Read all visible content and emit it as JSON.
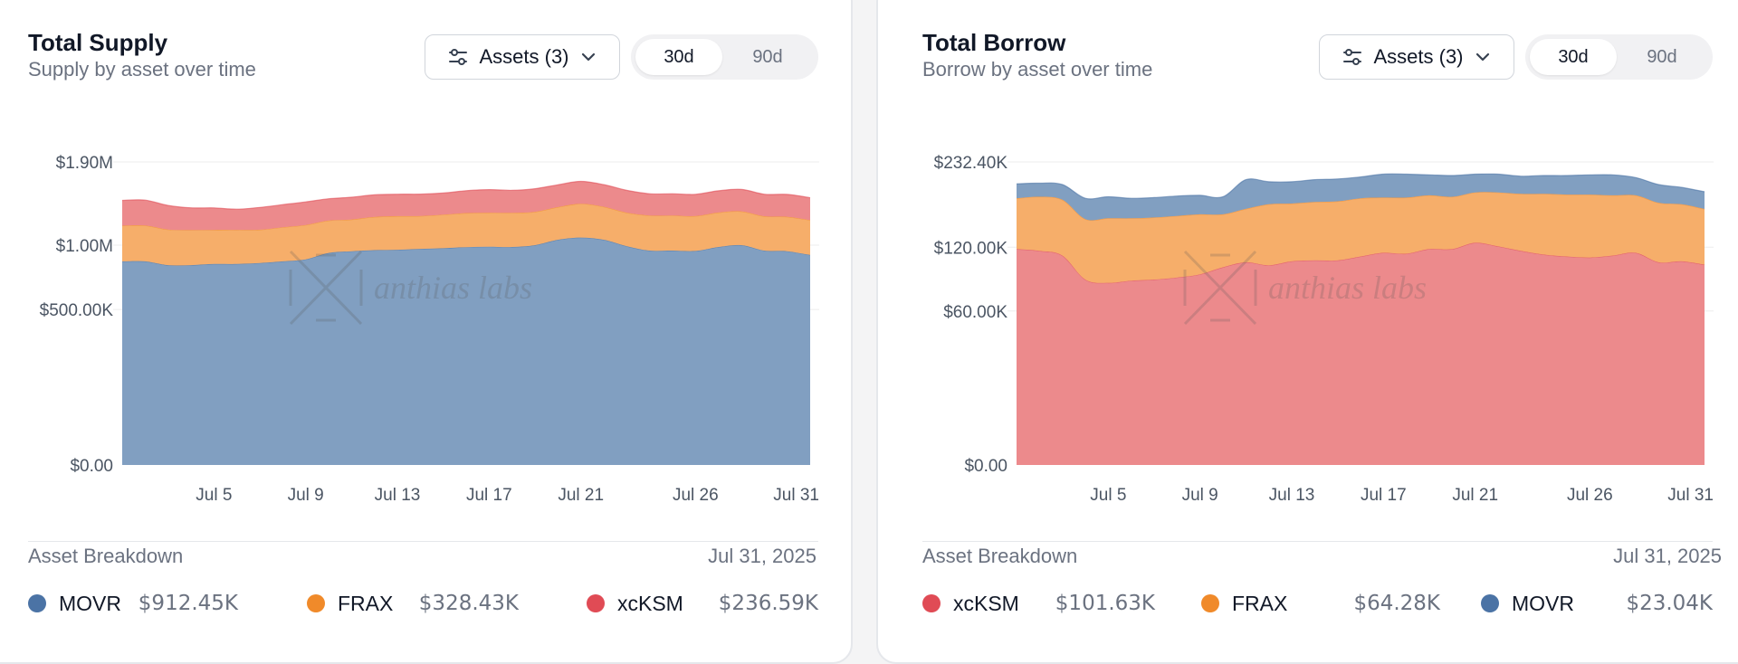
{
  "watermark": "anthias labs",
  "colors": {
    "movr": "#4b73a5",
    "frax": "#f08a2a",
    "xcksm": "#e04b55",
    "movr_fill": "#819fc1",
    "frax_fill": "#f6ae6a",
    "xcksm_fill": "#ec8a8c"
  },
  "supply_card": {
    "title": "Total Supply",
    "subtitle": "Supply by asset over time",
    "assets_button": "Assets (3)",
    "range_options": [
      "30d",
      "90d"
    ],
    "active_range": "30d",
    "breakdown_label": "Asset Breakdown",
    "breakdown_date": "Jul 31, 2025",
    "legend": [
      {
        "name": "MOVR",
        "value": "$912.45K",
        "color": "#4b73a5"
      },
      {
        "name": "FRAX",
        "value": "$328.43K",
        "color": "#f08a2a"
      },
      {
        "name": "xcKSM",
        "value": "$236.59K",
        "color": "#e04b55"
      }
    ]
  },
  "borrow_card": {
    "title": "Total Borrow",
    "subtitle": "Borrow by asset over time",
    "assets_button": "Assets (3)",
    "range_options": [
      "30d",
      "90d"
    ],
    "active_range": "30d",
    "breakdown_label": "Asset Breakdown",
    "breakdown_date": "Jul 31, 2025",
    "legend": [
      {
        "name": "xcKSM",
        "value": "$101.63K",
        "color": "#e04b55"
      },
      {
        "name": "FRAX",
        "value": "$64.28K",
        "color": "#f08a2a"
      },
      {
        "name": "MOVR",
        "value": "$23.04K",
        "color": "#4b73a5"
      }
    ]
  },
  "chart_data": [
    {
      "type": "area",
      "stacked": true,
      "title": "Total Supply",
      "subtitle": "Supply by asset over time",
      "x": [
        "Jul 1",
        "Jul 2",
        "Jul 3",
        "Jul 4",
        "Jul 5",
        "Jul 6",
        "Jul 7",
        "Jul 8",
        "Jul 9",
        "Jul 10",
        "Jul 11",
        "Jul 12",
        "Jul 13",
        "Jul 14",
        "Jul 15",
        "Jul 16",
        "Jul 17",
        "Jul 18",
        "Jul 19",
        "Jul 20",
        "Jul 21",
        "Jul 22",
        "Jul 23",
        "Jul 24",
        "Jul 25",
        "Jul 26",
        "Jul 27",
        "Jul 28",
        "Jul 29",
        "Jul 30",
        "Jul 31"
      ],
      "x_ticks": [
        "Jul 5",
        "Jul 9",
        "Jul 13",
        "Jul 17",
        "Jul 21",
        "Jul 26",
        "Jul 31"
      ],
      "y_ticks": [
        {
          "value": 0,
          "label": "$0.00"
        },
        {
          "value": 500000,
          "label": "$500.00K"
        },
        {
          "value": 1000000,
          "label": "$1.00M"
        },
        {
          "value": 1900000,
          "label": "$1.90M"
        }
      ],
      "y_scale": "sqrt",
      "ylim": [
        0,
        1900000
      ],
      "grid": "horizontal",
      "series": [
        {
          "name": "MOVR",
          "color": "#4b73a5",
          "values": [
            858000,
            858000,
            826000,
            826000,
            836000,
            836000,
            844000,
            858000,
            875000,
            930000,
            945000,
            955000,
            958000,
            966000,
            972000,
            982000,
            986000,
            983000,
            1000000,
            1050000,
            1070000,
            1050000,
            991000,
            951000,
            951000,
            948000,
            983000,
            1000000,
            951000,
            945000,
            912450
          ]
        },
        {
          "name": "FRAX",
          "color": "#f08a2a",
          "values": [
            327000,
            328000,
            321000,
            316000,
            308000,
            308000,
            301000,
            311000,
            317000,
            306000,
            302000,
            318000,
            323000,
            316000,
            325000,
            331000,
            331000,
            333000,
            326000,
            326000,
            342000,
            330000,
            327000,
            337000,
            337000,
            334000,
            336000,
            331000,
            329000,
            330000,
            328430
          ]
        },
        {
          "name": "xcKSM",
          "color": "#e04b55",
          "values": [
            263000,
            265000,
            247000,
            226000,
            223000,
            210000,
            227000,
            233000,
            240000,
            230000,
            236000,
            237000,
            236000,
            236000,
            233000,
            243000,
            252000,
            244000,
            253000,
            248000,
            252000,
            246000,
            243000,
            234000,
            234000,
            234000,
            236000,
            240000,
            237000,
            240000,
            236590
          ]
        }
      ]
    },
    {
      "type": "area",
      "stacked": true,
      "title": "Total Borrow",
      "subtitle": "Borrow by asset over time",
      "x": [
        "Jul 1",
        "Jul 2",
        "Jul 3",
        "Jul 4",
        "Jul 5",
        "Jul 6",
        "Jul 7",
        "Jul 8",
        "Jul 9",
        "Jul 10",
        "Jul 11",
        "Jul 12",
        "Jul 13",
        "Jul 14",
        "Jul 15",
        "Jul 16",
        "Jul 17",
        "Jul 18",
        "Jul 19",
        "Jul 20",
        "Jul 21",
        "Jul 22",
        "Jul 23",
        "Jul 24",
        "Jul 25",
        "Jul 26",
        "Jul 27",
        "Jul 28",
        "Jul 29",
        "Jul 30",
        "Jul 31"
      ],
      "x_ticks": [
        "Jul 5",
        "Jul 9",
        "Jul 13",
        "Jul 17",
        "Jul 21",
        "Jul 26",
        "Jul 31"
      ],
      "y_ticks": [
        {
          "value": 0,
          "label": "$0.00"
        },
        {
          "value": 60000,
          "label": "$60.00K"
        },
        {
          "value": 120000,
          "label": "$120.00K"
        },
        {
          "value": 232400,
          "label": "$232.40K"
        }
      ],
      "y_scale": "sqrt",
      "ylim": [
        0,
        232400
      ],
      "grid": "horizontal",
      "series": [
        {
          "name": "xcKSM",
          "color": "#e04b55",
          "values": [
            118000,
            116000,
            111000,
            87000,
            84000,
            86000,
            87000,
            89000,
            92000,
            99000,
            104000,
            101000,
            105000,
            106000,
            106000,
            110000,
            114000,
            113000,
            118000,
            118000,
            125000,
            121000,
            116000,
            112000,
            110000,
            109000,
            111000,
            114000,
            104000,
            105000,
            101630
          ]
        },
        {
          "name": "FRAX",
          "color": "#f08a2a",
          "values": [
            62000,
            66000,
            67000,
            66000,
            70000,
            68000,
            68000,
            68000,
            67000,
            60000,
            62000,
            71000,
            68000,
            69000,
            70000,
            70000,
            67000,
            68000,
            66000,
            64000,
            63000,
            67000,
            70000,
            74000,
            75000,
            76000,
            73000,
            70000,
            70000,
            67000,
            64280
          ]
        },
        {
          "name": "MOVR",
          "color": "#4b73a5",
          "values": [
            20000,
            19000,
            21000,
            27000,
            28000,
            26000,
            26000,
            26000,
            25000,
            23000,
            40000,
            31000,
            30000,
            31000,
            31000,
            30000,
            33000,
            33000,
            29000,
            30000,
            26000,
            26000,
            25000,
            26000,
            27000,
            28000,
            29000,
            25000,
            25000,
            23000,
            23040
          ]
        }
      ]
    }
  ]
}
